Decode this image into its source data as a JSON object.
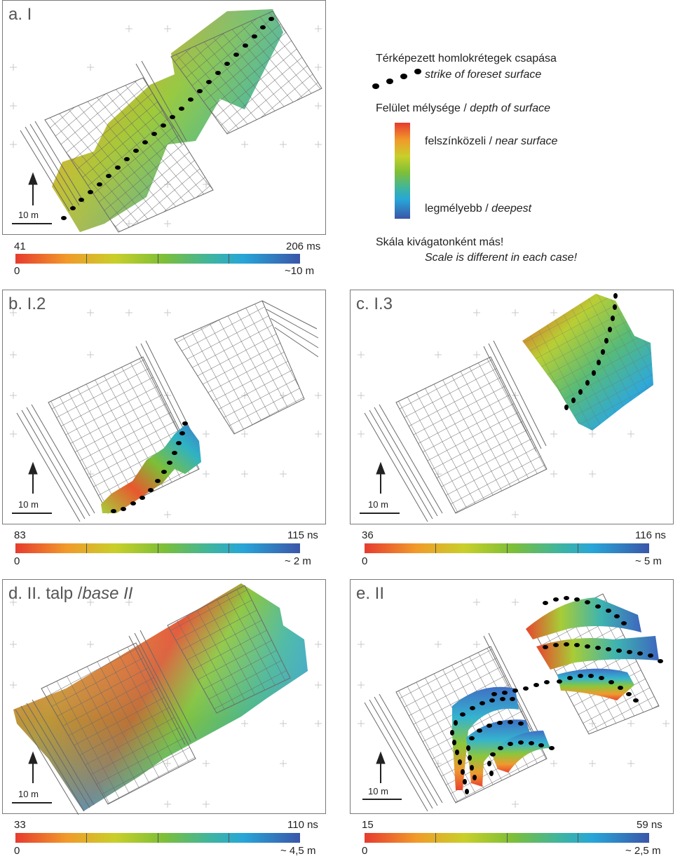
{
  "panels": {
    "a": {
      "label": "a. I",
      "scale": "10 m",
      "min": "41",
      "max": "206 ms",
      "depth_min": "0",
      "depth_max": "~10 m"
    },
    "b": {
      "label": "b. I.2",
      "scale": "10 m",
      "min": "83",
      "max": "115 ns",
      "depth_min": "0",
      "depth_max": "~ 2 m"
    },
    "c": {
      "label": "c. I.3",
      "scale": "10 m",
      "min": "36",
      "max": "116 ns",
      "depth_min": "0",
      "depth_max": "~ 5 m"
    },
    "d": {
      "label_main": "d. II. talp /",
      "label_italic": "base II",
      "scale": "10 m",
      "min": "33",
      "max": "110 ns",
      "depth_min": "0",
      "depth_max": "~ 4,5 m"
    },
    "e": {
      "label": "e. II",
      "scale": "10 m",
      "min": "15",
      "max": "59 ns",
      "depth_min": "0",
      "depth_max": "~ 2,5 m"
    }
  },
  "legend": {
    "strike_hu": "Térképezett homlokrétegek csapása",
    "strike_en": "strike of foreset surface",
    "depth_hu": "Felület mélysége /",
    "depth_en": "depth of surface",
    "near_hu": "felszínközeli /",
    "near_en": "near surface",
    "deep_hu": "legmélyebb /",
    "deep_en": "deepest",
    "scale_hu": "Skála kivágatonként más!",
    "scale_en": "Scale is different in each case!"
  },
  "colors": {
    "near_surface": "#e63b2f",
    "mid": "#7dbf37",
    "deepest": "#3a56a8",
    "grid": "#6f6f6f",
    "dots": "#000000"
  }
}
